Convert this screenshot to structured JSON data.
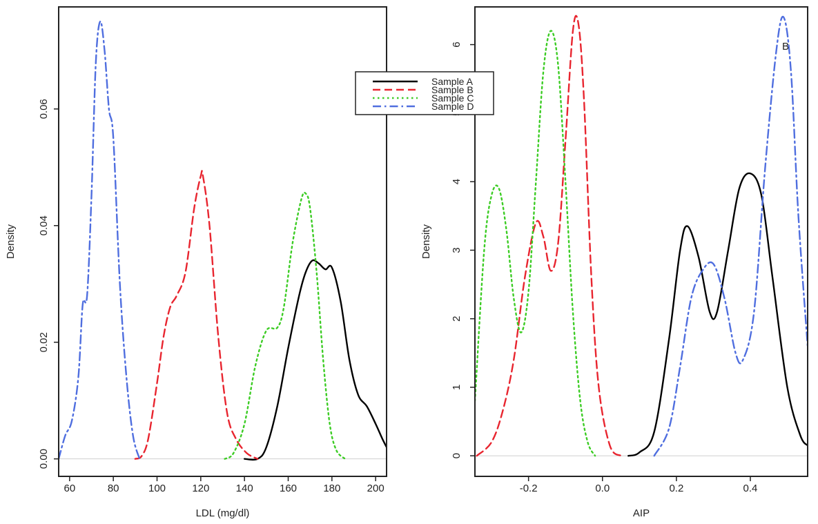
{
  "chart_data": [
    {
      "type": "line",
      "title": "",
      "xlabel": "LDL (mg/dl)",
      "ylabel": "Density",
      "xlim": [
        55,
        205
      ],
      "ylim": [
        -0.003,
        0.0775
      ],
      "xticks": [
        60,
        80,
        100,
        120,
        140,
        160,
        180,
        200
      ],
      "xtick_labels": [
        "60",
        "80",
        "100",
        "120",
        "140",
        "160",
        "180",
        "200"
      ],
      "yticks": [
        0.0,
        0.02,
        0.04,
        0.06
      ],
      "ytick_labels": [
        "0.00",
        "0.02",
        "0.04",
        "0.06"
      ],
      "grid": false,
      "series": [
        {
          "name": "Sample A",
          "color": "#000000",
          "dash": "solid",
          "x": [
            140,
            146,
            150,
            155,
            160,
            165,
            168,
            171,
            174,
            177,
            180,
            184,
            188,
            192,
            196,
            200,
            203,
            205
          ],
          "y": [
            0.0,
            0.0,
            0.002,
            0.009,
            0.019,
            0.028,
            0.032,
            0.034,
            0.0335,
            0.0325,
            0.0328,
            0.027,
            0.017,
            0.011,
            0.009,
            0.006,
            0.0035,
            0.002
          ]
        },
        {
          "name": "Sample B",
          "color": "#e8252f",
          "dash": "dashed",
          "x": [
            90,
            93,
            96,
            100,
            103,
            106,
            109,
            113,
            117,
            120,
            121,
            124,
            128,
            132,
            136,
            141,
            146
          ],
          "y": [
            0.0,
            0.0005,
            0.0035,
            0.013,
            0.021,
            0.026,
            0.028,
            0.032,
            0.043,
            0.0485,
            0.0485,
            0.04,
            0.021,
            0.008,
            0.0035,
            0.001,
            0.0
          ]
        },
        {
          "name": "Sample C",
          "color": "#3ccc24",
          "dash": "dotted",
          "x": [
            131,
            135,
            140,
            145,
            150,
            155,
            158,
            162,
            166,
            168,
            170,
            173,
            176,
            179,
            182,
            186
          ],
          "y": [
            0.0,
            0.001,
            0.006,
            0.016,
            0.022,
            0.0225,
            0.026,
            0.037,
            0.0445,
            0.0455,
            0.043,
            0.032,
            0.017,
            0.006,
            0.0015,
            0.0
          ]
        },
        {
          "name": "Sample D",
          "color": "#4f6edf",
          "dash": "dashdot",
          "x": [
            55,
            58,
            61,
            64,
            66,
            68,
            70,
            72,
            74,
            76,
            78,
            80,
            83,
            86,
            89,
            92
          ],
          "y": [
            0.0,
            0.004,
            0.0065,
            0.014,
            0.0265,
            0.028,
            0.045,
            0.068,
            0.075,
            0.07,
            0.06,
            0.055,
            0.03,
            0.014,
            0.004,
            0.0
          ]
        }
      ]
    },
    {
      "type": "line",
      "title": "",
      "xlabel": "AIP",
      "ylabel": "Density",
      "annotation": "B",
      "xlim": [
        -0.345,
        0.555
      ],
      "ylim": [
        -0.3,
        6.55
      ],
      "xticks": [
        -0.2,
        0.0,
        0.2,
        0.4
      ],
      "xtick_labels": [
        "-0.2",
        "0.0",
        "0.2",
        "0.4"
      ],
      "yticks": [
        0,
        1,
        2,
        3,
        4,
        5,
        6
      ],
      "ytick_labels": [
        "0",
        "1",
        "2",
        "3",
        "4",
        "5",
        "6"
      ],
      "grid": false,
      "legend": {
        "position": "top-center",
        "entries": [
          "Sample A",
          "Sample B",
          "Sample C",
          "Sample D"
        ]
      },
      "series": [
        {
          "name": "Sample A",
          "color": "#000000",
          "dash": "solid",
          "x": [
            0.07,
            0.1,
            0.14,
            0.18,
            0.21,
            0.23,
            0.26,
            0.29,
            0.31,
            0.34,
            0.37,
            0.4,
            0.43,
            0.46,
            0.5,
            0.535,
            0.555
          ],
          "y": [
            0.0,
            0.05,
            0.35,
            1.7,
            3.0,
            3.35,
            2.9,
            2.1,
            2.1,
            3.0,
            3.9,
            4.12,
            3.8,
            2.6,
            1.0,
            0.3,
            0.15
          ]
        },
        {
          "name": "Sample B",
          "color": "#e8252f",
          "dash": "dashed",
          "x": [
            -0.34,
            -0.3,
            -0.27,
            -0.24,
            -0.21,
            -0.18,
            -0.16,
            -0.14,
            -0.12,
            -0.1,
            -0.08,
            -0.065,
            -0.05,
            -0.03,
            -0.01,
            0.02,
            0.05
          ],
          "y": [
            0.0,
            0.2,
            0.65,
            1.4,
            2.6,
            3.4,
            3.2,
            2.7,
            3.1,
            4.6,
            6.2,
            6.3,
            5.2,
            2.6,
            1.0,
            0.15,
            0.0
          ]
        },
        {
          "name": "Sample C",
          "color": "#3ccc24",
          "dash": "dotted",
          "x": [
            -0.345,
            -0.32,
            -0.3,
            -0.28,
            -0.26,
            -0.24,
            -0.22,
            -0.2,
            -0.18,
            -0.16,
            -0.14,
            -0.12,
            -0.1,
            -0.08,
            -0.06,
            -0.04,
            -0.02
          ],
          "y": [
            0.8,
            3.0,
            3.8,
            3.9,
            3.3,
            2.3,
            1.8,
            2.4,
            4.0,
            5.6,
            6.2,
            5.7,
            4.0,
            2.1,
            0.8,
            0.2,
            0.0
          ]
        },
        {
          "name": "Sample D",
          "color": "#4f6edf",
          "dash": "dashdot",
          "x": [
            0.14,
            0.18,
            0.21,
            0.24,
            0.27,
            0.3,
            0.33,
            0.36,
            0.38,
            0.41,
            0.44,
            0.47,
            0.49,
            0.51,
            0.53,
            0.555
          ],
          "y": [
            0.0,
            0.4,
            1.3,
            2.3,
            2.7,
            2.8,
            2.3,
            1.5,
            1.4,
            2.1,
            4.2,
            5.9,
            6.4,
            5.6,
            3.5,
            1.6
          ]
        }
      ]
    }
  ]
}
